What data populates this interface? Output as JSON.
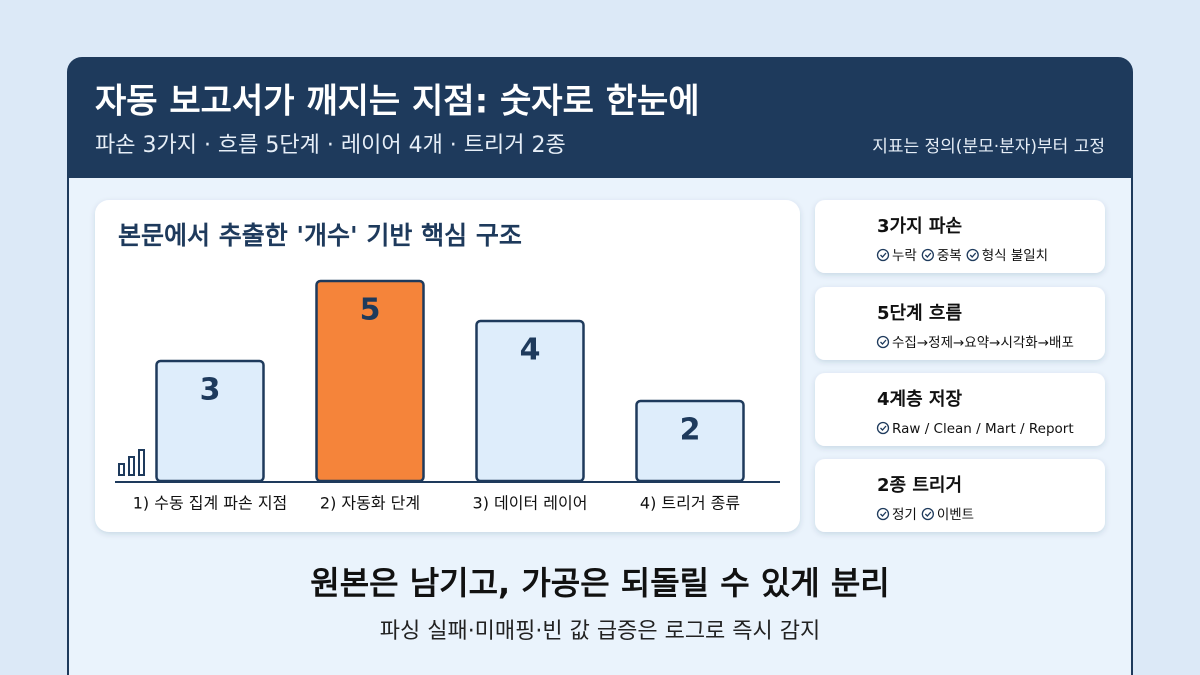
{
  "header": {
    "title": "자동 보고서가 깨지는 지점: 숫자로 한눈에",
    "subtitle": "파손 3가지 · 흐름 5단계 · 레이어 4개 · 트리거 2종",
    "note": "지표는 정의(분모·분자)부터 고정"
  },
  "chart_data": {
    "type": "bar",
    "title": "본문에서 추출한 '개수' 기반 핵심 구조",
    "categories": [
      "1) 수동 집계 파손 지점",
      "2) 자동화 단계",
      "3) 데이터 레이어",
      "4) 트리거 종류"
    ],
    "values": [
      3,
      5,
      4,
      2
    ],
    "colors": [
      "#deedfb",
      "#f5843a",
      "#deedfb",
      "#deedfb"
    ]
  },
  "cards": [
    {
      "title": "3가지 파손",
      "items": [
        "누락",
        "중복",
        "형식 불일치"
      ]
    },
    {
      "title": "5단계 흐름",
      "items": [
        "수집→정제→요약→시각화→배포"
      ]
    },
    {
      "title": "4계층 저장",
      "items": [
        "Raw / Clean / Mart / Report"
      ]
    },
    {
      "title": "2종 트리거",
      "items": [
        "정기",
        "이벤트"
      ]
    }
  ],
  "footer": {
    "headline": "원본은 남기고, 가공은 되돌릴 수 있게 분리",
    "subline": "파싱 실패·미매핑·빈 값 급증은 로그로 즉시 감지"
  }
}
